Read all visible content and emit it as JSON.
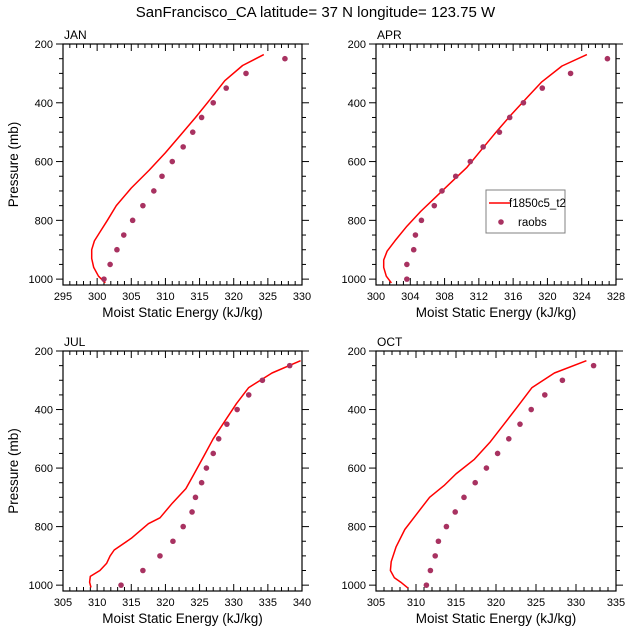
{
  "title": "SanFrancisco_CA  latitude= 37 N longitude= 123.75 W",
  "colors": {
    "model_line": "#ff0000",
    "obs_marker": "#a83261",
    "frame": "#000000",
    "legend_border": "#808080"
  },
  "legend": {
    "placement": "right-middle of APR panel",
    "entries": [
      {
        "label": "f1850c5_t2",
        "kind": "line"
      },
      {
        "label": "raobs",
        "kind": "marker"
      }
    ]
  },
  "chart_data": [
    {
      "type": "line",
      "panel": "JAN",
      "title": "JAN",
      "xlabel": "Moist Static Energy (kJ/kg)",
      "ylabel": "Pressure (mb)",
      "xlim": [
        295,
        330
      ],
      "ylim": [
        1020,
        200
      ],
      "xticks": [
        295,
        300,
        305,
        310,
        315,
        320,
        325,
        330
      ],
      "yticks": [
        200,
        400,
        600,
        800,
        1000
      ],
      "series": [
        {
          "name": "f1850c5_t2",
          "style": "line",
          "x": [
            324.4,
            321.3,
            318.7,
            316.5,
            314.4,
            312.2,
            310.0,
            307.6,
            305.0,
            302.8,
            301.5,
            300.4,
            299.6,
            299.2,
            299.2,
            299.5,
            300.2,
            301.2
          ],
          "y": [
            236,
            273,
            325,
            390,
            450,
            510,
            570,
            630,
            690,
            750,
            800,
            840,
            870,
            900,
            930,
            960,
            990,
            1013
          ]
        },
        {
          "name": "raobs",
          "style": "marker",
          "x": [
            327.5,
            321.8,
            318.9,
            317.0,
            315.3,
            314.0,
            312.6,
            311.0,
            309.5,
            308.3,
            306.7,
            305.2,
            303.9,
            302.9,
            301.9,
            301.0
          ],
          "y": [
            250,
            300,
            350,
            400,
            450,
            500,
            550,
            600,
            650,
            700,
            750,
            800,
            850,
            900,
            950,
            1000
          ]
        }
      ]
    },
    {
      "type": "line",
      "panel": "APR",
      "title": "APR",
      "xlabel": "Moist Static Energy (kJ/kg)",
      "ylabel": "",
      "xlim": [
        300,
        328
      ],
      "ylim": [
        1020,
        200
      ],
      "xticks": [
        300,
        304,
        308,
        312,
        316,
        320,
        324,
        328
      ],
      "yticks": [
        200,
        400,
        600,
        800,
        1000
      ],
      "series": [
        {
          "name": "f1850c5_t2",
          "style": "line",
          "x": [
            324.6,
            321.7,
            319.3,
            317.7,
            315.8,
            314.0,
            312.3,
            310.6,
            308.8,
            307.0,
            305.2,
            303.6,
            302.2,
            301.3,
            300.9,
            300.9,
            301.2,
            301.8
          ],
          "y": [
            236,
            275,
            330,
            380,
            440,
            500,
            560,
            620,
            670,
            720,
            770,
            820,
            870,
            905,
            935,
            960,
            990,
            1013
          ]
        },
        {
          "name": "raobs",
          "style": "marker",
          "x": [
            327.0,
            322.7,
            319.4,
            317.2,
            315.6,
            314.4,
            312.5,
            311.0,
            309.3,
            307.7,
            306.8,
            305.3,
            304.6,
            304.4,
            303.6,
            303.6
          ],
          "y": [
            250,
            300,
            350,
            400,
            450,
            500,
            550,
            600,
            650,
            700,
            750,
            800,
            850,
            900,
            950,
            1000
          ]
        }
      ]
    },
    {
      "type": "line",
      "panel": "JUL",
      "title": "JUL",
      "xlabel": "Moist Static Energy (kJ/kg)",
      "ylabel": "Pressure (mb)",
      "xlim": [
        305,
        340
      ],
      "ylim": [
        1020,
        200
      ],
      "xticks": [
        305,
        310,
        315,
        320,
        325,
        330,
        335,
        340
      ],
      "yticks": [
        200,
        400,
        600,
        800,
        1000
      ],
      "series": [
        {
          "name": "f1850c5_t2",
          "style": "line",
          "x": [
            339.8,
            335.6,
            332.2,
            330.4,
            328.7,
            327.0,
            325.6,
            324.2,
            323.0,
            321.0,
            319.2,
            317.5,
            315.0,
            312.5,
            311.9,
            311.4,
            310.4,
            309.0,
            308.9,
            309.1
          ],
          "y": [
            233,
            275,
            325,
            380,
            440,
            500,
            560,
            620,
            670,
            720,
            770,
            790,
            840,
            880,
            900,
            925,
            950,
            970,
            990,
            1008
          ]
        },
        {
          "name": "raobs",
          "style": "marker",
          "x": [
            338.2,
            334.2,
            332.2,
            330.5,
            329.0,
            327.8,
            327.0,
            326.0,
            325.3,
            324.4,
            323.9,
            322.6,
            321.1,
            319.2,
            316.7,
            313.5
          ],
          "y": [
            250,
            300,
            350,
            400,
            450,
            500,
            550,
            600,
            650,
            700,
            750,
            800,
            850,
            900,
            950,
            1000
          ]
        }
      ]
    },
    {
      "type": "line",
      "panel": "OCT",
      "title": "OCT",
      "xlabel": "Moist Static Energy (kJ/kg)",
      "ylabel": "",
      "xlim": [
        305,
        335
      ],
      "ylim": [
        1020,
        200
      ],
      "xticks": [
        305,
        310,
        315,
        320,
        325,
        330,
        335
      ],
      "yticks": [
        200,
        400,
        600,
        800,
        1000
      ],
      "series": [
        {
          "name": "f1850c5_t2",
          "style": "line",
          "x": [
            331.3,
            327.3,
            324.5,
            322.7,
            321.0,
            319.3,
            317.3,
            315.0,
            313.5,
            311.7,
            310.0,
            308.6,
            307.5,
            306.9,
            306.8,
            307.3,
            308.1,
            309.0
          ],
          "y": [
            233,
            275,
            325,
            390,
            450,
            510,
            570,
            620,
            660,
            700,
            760,
            810,
            870,
            920,
            950,
            975,
            990,
            1010
          ]
        },
        {
          "name": "raobs",
          "style": "marker",
          "x": [
            332.2,
            328.3,
            326.1,
            324.4,
            323.0,
            321.6,
            320.2,
            318.8,
            317.4,
            316.0,
            314.9,
            313.8,
            312.8,
            312.4,
            311.8,
            311.3
          ],
          "y": [
            250,
            300,
            350,
            400,
            450,
            500,
            550,
            600,
            650,
            700,
            750,
            800,
            850,
            900,
            950,
            1000
          ]
        }
      ]
    }
  ]
}
